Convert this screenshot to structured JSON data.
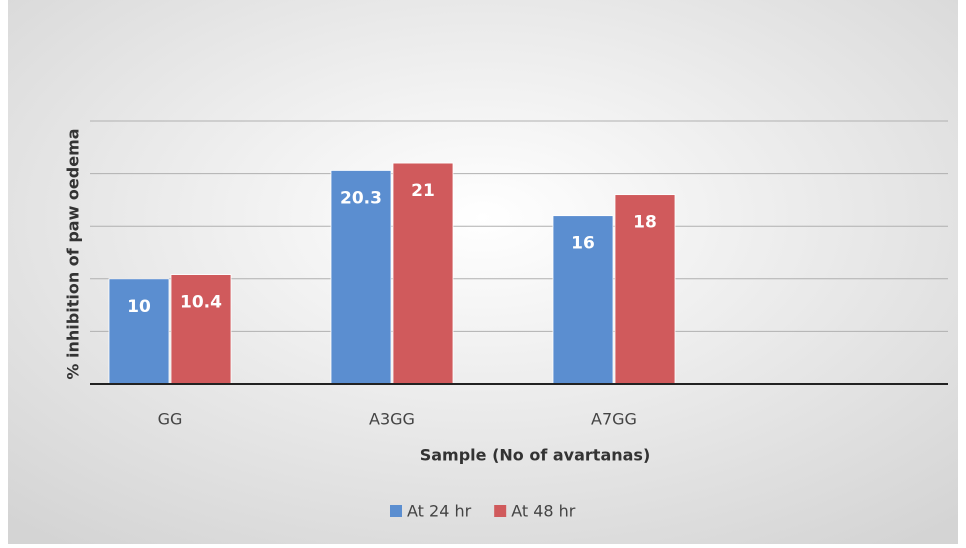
{
  "chart_data": {
    "type": "bar",
    "x_label": "Sample (No of avartanas)",
    "y_label": "% inhibition of paw oedema",
    "categories": [
      "GG",
      "A3GG",
      "A7GG"
    ],
    "series": [
      {
        "name": "At 24 hr",
        "color": "#5b8ed0",
        "values": [
          10,
          20.3,
          16
        ]
      },
      {
        "name": "At 48 hr",
        "color": "#d05a5c",
        "values": [
          10.4,
          21,
          18
        ]
      }
    ],
    "ylim": [
      0,
      25
    ],
    "yticks": [
      0,
      5,
      10,
      15,
      20,
      25
    ],
    "grid": true
  }
}
